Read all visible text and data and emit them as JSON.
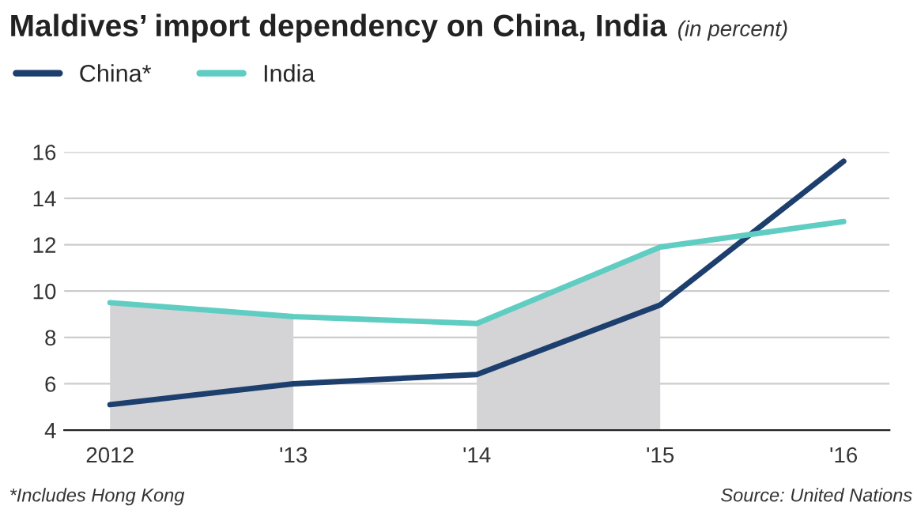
{
  "chart_data": {
    "type": "line",
    "title": "Maldives’ import dependency on China, India",
    "subtitle": "(in percent)",
    "categories": [
      "2012",
      "'13",
      "'14",
      "'15",
      "'16"
    ],
    "series": [
      {
        "type": "area",
        "color": "#d4d4d6",
        "values": [
          9.5,
          8.9,
          null,
          null,
          null
        ]
      },
      {
        "type": "area",
        "color": "#d4d4d6",
        "values": [
          null,
          null,
          8.6,
          11.9,
          null
        ]
      },
      {
        "name": "China*",
        "color": "#1d3f6e",
        "values": [
          5.1,
          6.0,
          6.4,
          9.4,
          15.6
        ]
      },
      {
        "name": "India",
        "color": "#5fcdc2",
        "values": [
          9.5,
          8.9,
          8.6,
          11.9,
          13.0
        ]
      }
    ],
    "ylim": [
      4,
      16
    ],
    "yticks": [
      4,
      6,
      8,
      10,
      12,
      14,
      16
    ],
    "grid": "y",
    "legend": "top left",
    "annotations": [
      "*Includes Hong Kong",
      "Source: United Nations"
    ]
  }
}
